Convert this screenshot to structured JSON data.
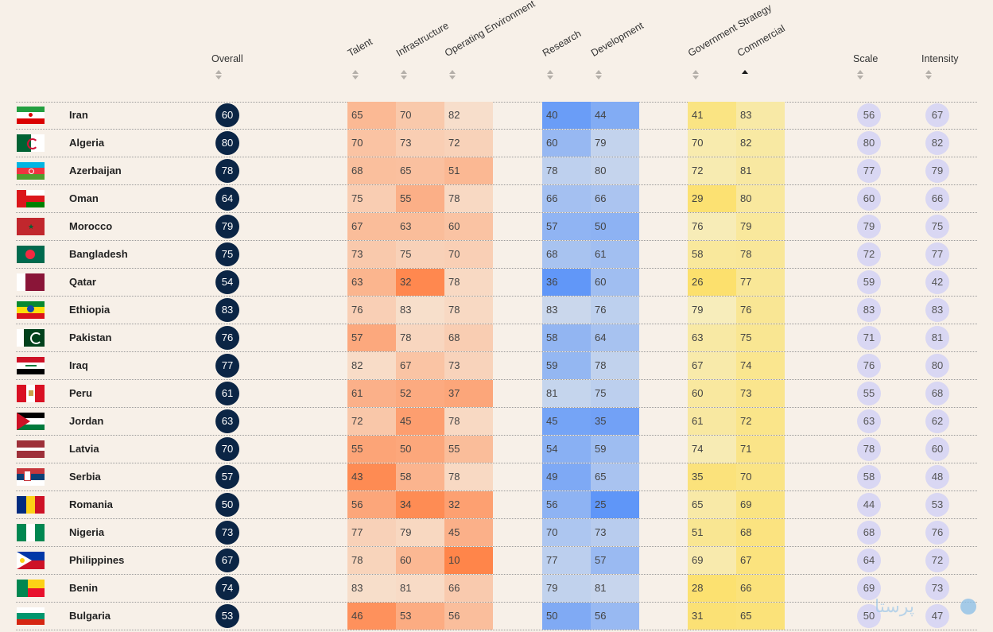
{
  "headers": {
    "overall": "Overall",
    "talent": "Talent",
    "infrastructure": "Infrastructure",
    "operating": "Operating Environment",
    "research": "Research",
    "development": "Development",
    "gov": "Government Strategy",
    "commercial": "Commercial",
    "scale": "Scale",
    "intensity": "Intensity"
  },
  "active_sort": "commercial",
  "watermark": "پرستا",
  "colors": {
    "overall_bg": "#0b2545",
    "pill_bg": "#d9d7f3",
    "orange_base": [
      247,
      226,
      208
    ],
    "orange_strong": [
      255,
      133,
      74
    ],
    "blue_base": [
      206,
      218,
      236
    ],
    "blue_strong": [
      95,
      150,
      248
    ],
    "yellow_base": [
      246,
      238,
      196
    ],
    "yellow_strong": [
      252,
      224,
      108
    ]
  },
  "rows": [
    {
      "country": "Iran",
      "flag": "iran-flag",
      "overall": "60",
      "talent": "65",
      "infrastructure": "70",
      "operating": "82",
      "research": "40",
      "development": "44",
      "gov": "41",
      "commercial": "83",
      "scale": "56",
      "intensity": "67"
    },
    {
      "country": "Algeria",
      "flag": "algeria-flag",
      "overall": "80",
      "talent": "70",
      "infrastructure": "73",
      "operating": "72",
      "research": "60",
      "development": "79",
      "gov": "70",
      "commercial": "82",
      "scale": "80",
      "intensity": "82"
    },
    {
      "country": "Azerbaijan",
      "flag": "azerbaijan-flag",
      "overall": "78",
      "talent": "68",
      "infrastructure": "65",
      "operating": "51",
      "research": "78",
      "development": "80",
      "gov": "72",
      "commercial": "81",
      "scale": "77",
      "intensity": "79"
    },
    {
      "country": "Oman",
      "flag": "oman-flag",
      "overall": "64",
      "talent": "75",
      "infrastructure": "55",
      "operating": "78",
      "research": "66",
      "development": "66",
      "gov": "29",
      "commercial": "80",
      "scale": "60",
      "intensity": "66"
    },
    {
      "country": "Morocco",
      "flag": "morocco-flag",
      "overall": "79",
      "talent": "67",
      "infrastructure": "63",
      "operating": "60",
      "research": "57",
      "development": "50",
      "gov": "76",
      "commercial": "79",
      "scale": "79",
      "intensity": "75"
    },
    {
      "country": "Bangladesh",
      "flag": "bangladesh-flag",
      "overall": "75",
      "talent": "73",
      "infrastructure": "75",
      "operating": "70",
      "research": "68",
      "development": "61",
      "gov": "58",
      "commercial": "78",
      "scale": "72",
      "intensity": "77"
    },
    {
      "country": "Qatar",
      "flag": "qatar-flag",
      "overall": "54",
      "talent": "63",
      "infrastructure": "32",
      "operating": "78",
      "research": "36",
      "development": "60",
      "gov": "26",
      "commercial": "77",
      "scale": "59",
      "intensity": "42"
    },
    {
      "country": "Ethiopia",
      "flag": "ethiopia-flag",
      "overall": "83",
      "talent": "76",
      "infrastructure": "83",
      "operating": "78",
      "research": "83",
      "development": "76",
      "gov": "79",
      "commercial": "76",
      "scale": "83",
      "intensity": "83"
    },
    {
      "country": "Pakistan",
      "flag": "pakistan-flag",
      "overall": "76",
      "talent": "57",
      "infrastructure": "78",
      "operating": "68",
      "research": "58",
      "development": "64",
      "gov": "63",
      "commercial": "75",
      "scale": "71",
      "intensity": "81"
    },
    {
      "country": "Iraq",
      "flag": "iraq-flag",
      "overall": "77",
      "talent": "82",
      "infrastructure": "67",
      "operating": "73",
      "research": "59",
      "development": "78",
      "gov": "67",
      "commercial": "74",
      "scale": "76",
      "intensity": "80"
    },
    {
      "country": "Peru",
      "flag": "peru-flag",
      "overall": "61",
      "talent": "61",
      "infrastructure": "52",
      "operating": "37",
      "research": "81",
      "development": "75",
      "gov": "60",
      "commercial": "73",
      "scale": "55",
      "intensity": "68"
    },
    {
      "country": "Jordan",
      "flag": "jordan-flag",
      "overall": "63",
      "talent": "72",
      "infrastructure": "45",
      "operating": "78",
      "research": "45",
      "development": "35",
      "gov": "61",
      "commercial": "72",
      "scale": "63",
      "intensity": "62"
    },
    {
      "country": "Latvia",
      "flag": "latvia-flag",
      "overall": "70",
      "talent": "55",
      "infrastructure": "50",
      "operating": "55",
      "research": "54",
      "development": "59",
      "gov": "74",
      "commercial": "71",
      "scale": "78",
      "intensity": "60"
    },
    {
      "country": "Serbia",
      "flag": "serbia-flag",
      "overall": "57",
      "talent": "43",
      "infrastructure": "58",
      "operating": "78",
      "research": "49",
      "development": "65",
      "gov": "35",
      "commercial": "70",
      "scale": "58",
      "intensity": "48"
    },
    {
      "country": "Romania",
      "flag": "romania-flag",
      "overall": "50",
      "talent": "56",
      "infrastructure": "34",
      "operating": "32",
      "research": "56",
      "development": "25",
      "gov": "65",
      "commercial": "69",
      "scale": "44",
      "intensity": "53"
    },
    {
      "country": "Nigeria",
      "flag": "nigeria-flag",
      "overall": "73",
      "talent": "77",
      "infrastructure": "79",
      "operating": "45",
      "research": "70",
      "development": "73",
      "gov": "51",
      "commercial": "68",
      "scale": "68",
      "intensity": "76"
    },
    {
      "country": "Philippines",
      "flag": "philippines-flag",
      "overall": "67",
      "talent": "78",
      "infrastructure": "60",
      "operating": "10",
      "research": "77",
      "development": "57",
      "gov": "69",
      "commercial": "67",
      "scale": "64",
      "intensity": "72"
    },
    {
      "country": "Benin",
      "flag": "benin-flag",
      "overall": "74",
      "talent": "83",
      "infrastructure": "81",
      "operating": "66",
      "research": "79",
      "development": "81",
      "gov": "28",
      "commercial": "66",
      "scale": "69",
      "intensity": "73"
    },
    {
      "country": "Bulgaria",
      "flag": "bulgaria-flag",
      "overall": "53",
      "talent": "46",
      "infrastructure": "53",
      "operating": "56",
      "research": "50",
      "development": "56",
      "gov": "31",
      "commercial": "65",
      "scale": "50",
      "intensity": "47"
    }
  ]
}
